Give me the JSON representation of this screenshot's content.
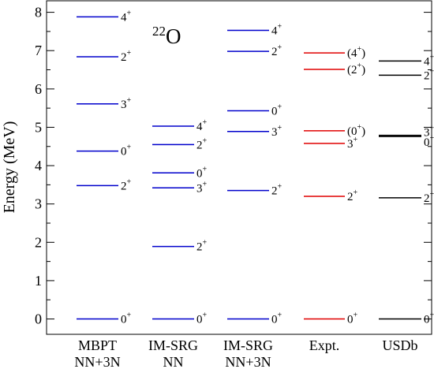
{
  "chart_data": {
    "type": "level-scheme",
    "ylabel": "Energy (MeV)",
    "ylim": [
      -0.4,
      8.3
    ],
    "yticks": [
      0,
      1,
      2,
      3,
      4,
      5,
      6,
      7,
      8
    ],
    "grid": false,
    "nucleus": {
      "mass": "22",
      "symbol": "O"
    },
    "columns": [
      {
        "label_line1": "MBPT",
        "label_line2": "NN+3N",
        "color": "#0000cc",
        "levels": [
          {
            "energy": 0.0,
            "spin": "0",
            "parity": "+",
            "label_y": 0.0
          },
          {
            "energy": 3.48,
            "spin": "2",
            "parity": "+",
            "label_y": 3.48
          },
          {
            "energy": 4.38,
            "spin": "0",
            "parity": "+",
            "label_y": 4.38
          },
          {
            "energy": 5.61,
            "spin": "3",
            "parity": "+",
            "label_y": 5.61
          },
          {
            "energy": 6.84,
            "spin": "2",
            "parity": "+",
            "label_y": 6.84
          },
          {
            "energy": 7.88,
            "spin": "4",
            "parity": "+",
            "label_y": 7.88
          }
        ]
      },
      {
        "label_line1": "IM-SRG",
        "label_line2": "NN",
        "color": "#0000cc",
        "levels": [
          {
            "energy": 0.0,
            "spin": "0",
            "parity": "+",
            "label_y": 0.0
          },
          {
            "energy": 1.89,
            "spin": "2",
            "parity": "+",
            "label_y": 1.89
          },
          {
            "energy": 3.42,
            "spin": "3",
            "parity": "+",
            "label_y": 3.42
          },
          {
            "energy": 3.81,
            "spin": "0",
            "parity": "+",
            "label_y": 3.81
          },
          {
            "energy": 4.55,
            "spin": "2",
            "parity": "+",
            "label_y": 4.55
          },
          {
            "energy": 5.03,
            "spin": "4",
            "parity": "+",
            "label_y": 5.03
          }
        ]
      },
      {
        "label_line1": "IM-SRG",
        "label_line2": "NN+3N",
        "color": "#0000cc",
        "levels": [
          {
            "energy": 0.0,
            "spin": "0",
            "parity": "+",
            "label_y": 0.0
          },
          {
            "energy": 3.35,
            "spin": "2",
            "parity": "+",
            "label_y": 3.35
          },
          {
            "energy": 4.89,
            "spin": "3",
            "parity": "+",
            "label_y": 4.89
          },
          {
            "energy": 5.43,
            "spin": "0",
            "parity": "+",
            "label_y": 5.43
          },
          {
            "energy": 6.98,
            "spin": "2",
            "parity": "+",
            "label_y": 6.98
          },
          {
            "energy": 7.53,
            "spin": "4",
            "parity": "+",
            "label_y": 7.53
          }
        ]
      },
      {
        "label_line1": "Expt.",
        "label_line2": "",
        "color": "#e00000",
        "levels": [
          {
            "energy": 0.0,
            "spin": "0",
            "parity": "+",
            "paren": false,
            "label_y": 0.0
          },
          {
            "energy": 3.2,
            "spin": "2",
            "parity": "+",
            "paren": false,
            "label_y": 3.2
          },
          {
            "energy": 4.58,
            "spin": "3",
            "parity": "+",
            "paren": false,
            "label_y": 4.58
          },
          {
            "energy": 4.91,
            "spin": "0",
            "parity": "+",
            "paren": true,
            "label_y": 4.91
          },
          {
            "energy": 6.51,
            "spin": "2",
            "parity": "+",
            "paren": true,
            "label_y": 6.51
          },
          {
            "energy": 6.94,
            "spin": "4",
            "parity": "+",
            "paren": true,
            "label_y": 6.94
          }
        ]
      },
      {
        "label_line1": "USDb",
        "label_line2": "",
        "color": "#000000",
        "levels": [
          {
            "energy": 0.0,
            "spin": "0",
            "parity": "+",
            "label_y": 0.0
          },
          {
            "energy": 3.16,
            "spin": "2",
            "parity": "+",
            "label_y": 3.16
          },
          {
            "energy": 4.76,
            "spin": "0",
            "parity": "+",
            "label_y": 4.62
          },
          {
            "energy": 4.79,
            "spin": "3",
            "parity": "+",
            "label_y": 4.88
          },
          {
            "energy": 6.36,
            "spin": "2",
            "parity": "+",
            "label_y": 6.36
          },
          {
            "energy": 6.73,
            "spin": "4",
            "parity": "+",
            "label_y": 6.73
          }
        ]
      }
    ]
  }
}
